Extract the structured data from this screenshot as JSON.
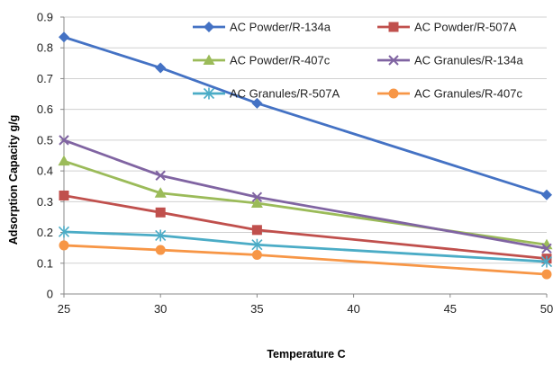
{
  "chart_data": {
    "type": "line",
    "title": "",
    "xlabel": "Temperature C",
    "ylabel": "Adsorption Capacity  g/g",
    "x": [
      25,
      30,
      35,
      50
    ],
    "xlim": [
      25,
      50
    ],
    "ylim": [
      0,
      0.9
    ],
    "x_ticks": [
      "25",
      "30",
      "35",
      "40",
      "45",
      "50"
    ],
    "y_ticks": [
      "0",
      "0.1",
      "0.2",
      "0.3",
      "0.4",
      "0.5",
      "0.6",
      "0.7",
      "0.8",
      "0.9"
    ],
    "grid": "horizontal",
    "legend_position": "top-right",
    "series": [
      {
        "name": "AC Powder/R-134a",
        "color": "#4472C4",
        "marker": "diamond",
        "values": [
          0.835,
          0.735,
          0.62,
          0.322
        ]
      },
      {
        "name": "AC Powder/R-507A",
        "color": "#C0504D",
        "marker": "square",
        "values": [
          0.32,
          0.265,
          0.208,
          0.115
        ]
      },
      {
        "name": "AC Powder/R-407c",
        "color": "#9BBB59",
        "marker": "triangle",
        "values": [
          0.432,
          0.328,
          0.295,
          0.16
        ]
      },
      {
        "name": "AC Granules/R-134a",
        "color": "#8064A2",
        "marker": "x",
        "values": [
          0.5,
          0.385,
          0.315,
          0.148
        ]
      },
      {
        "name": "AC Granules/R-507A",
        "color": "#4BACC6",
        "marker": "star",
        "values": [
          0.202,
          0.19,
          0.16,
          0.105
        ]
      },
      {
        "name": "AC Granules/R-407c",
        "color": "#F79646",
        "marker": "circle",
        "values": [
          0.158,
          0.143,
          0.127,
          0.064
        ]
      }
    ]
  }
}
